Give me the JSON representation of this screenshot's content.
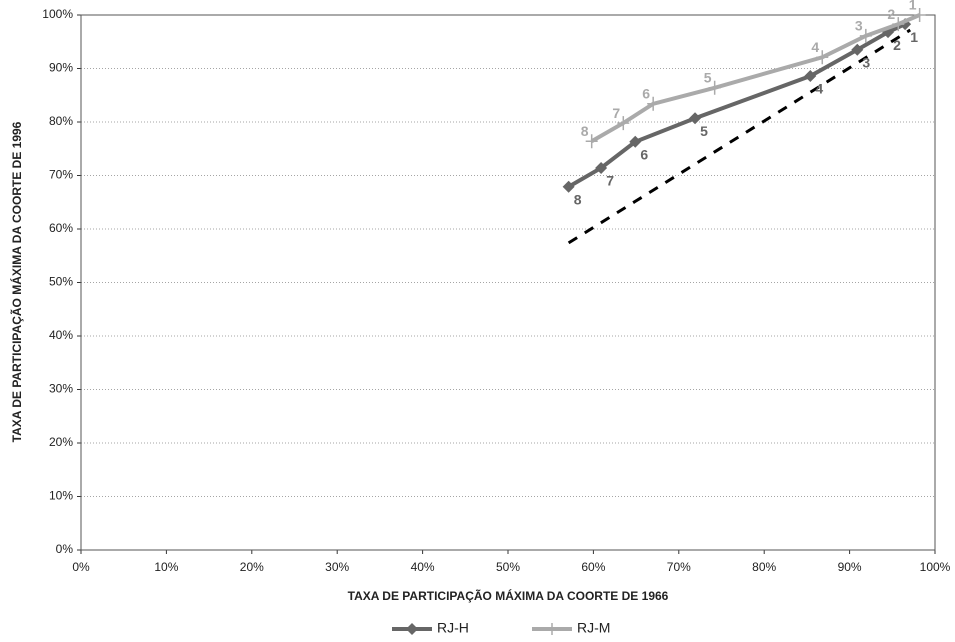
{
  "chart_data": {
    "type": "line",
    "xlabel": "TAXA DE PARTICIPAÇÃO MÁXIMA DA COORTE DE 1966",
    "ylabel": "TAXA DE PARTICIPAÇÃO MÁXIMA DA COORTE DE 1996",
    "xlim": [
      0,
      100
    ],
    "ylim": [
      0,
      100
    ],
    "xticks": [
      {
        "value": 0,
        "label": "0%"
      },
      {
        "value": 10,
        "label": "10%"
      },
      {
        "value": 20,
        "label": "20%"
      },
      {
        "value": 30,
        "label": "30%"
      },
      {
        "value": 40,
        "label": "40%"
      },
      {
        "value": 50,
        "label": "50%"
      },
      {
        "value": 60,
        "label": "60%"
      },
      {
        "value": 70,
        "label": "70%"
      },
      {
        "value": 80,
        "label": "80%"
      },
      {
        "value": 90,
        "label": "90%"
      },
      {
        "value": 100,
        "label": "100%"
      }
    ],
    "yticks": [
      {
        "value": 0,
        "label": "0%"
      },
      {
        "value": 10,
        "label": "10%"
      },
      {
        "value": 20,
        "label": "20%"
      },
      {
        "value": 30,
        "label": "30%"
      },
      {
        "value": 40,
        "label": "40%"
      },
      {
        "value": 50,
        "label": "50%"
      },
      {
        "value": 60,
        "label": "60%"
      },
      {
        "value": 70,
        "label": "70%"
      },
      {
        "value": 80,
        "label": "80%"
      },
      {
        "value": 90,
        "label": "90%"
      },
      {
        "value": 100,
        "label": "100%"
      }
    ],
    "grid": true,
    "series": [
      {
        "name": "RJ-H",
        "color": "#666666",
        "marker": "diamond",
        "x": [
          57.1,
          60.9,
          64.9,
          71.9,
          85.4,
          90.9,
          94.5,
          96.5
        ],
        "values": [
          67.9,
          71.4,
          76.3,
          80.7,
          88.6,
          93.5,
          96.8,
          98.3
        ],
        "point_labels": [
          "8",
          "7",
          "6",
          "5",
          "4",
          "3",
          "2",
          "1"
        ]
      },
      {
        "name": "RJ-M",
        "color": "#aaaaaa",
        "marker": "plus",
        "x": [
          59.8,
          63.5,
          67.0,
          74.2,
          86.8,
          91.9,
          95.7,
          98.2
        ],
        "values": [
          76.4,
          79.8,
          83.4,
          86.4,
          92.1,
          96.1,
          98.3,
          100
        ],
        "point_labels": [
          "8",
          "7",
          "6",
          "5",
          "4",
          "3",
          "2",
          "1"
        ]
      }
    ],
    "diagonal": {
      "x": [
        57.1,
        97.1
      ],
      "values": [
        57.4,
        97.2
      ],
      "color": "#000000"
    },
    "legend": "bottom"
  }
}
